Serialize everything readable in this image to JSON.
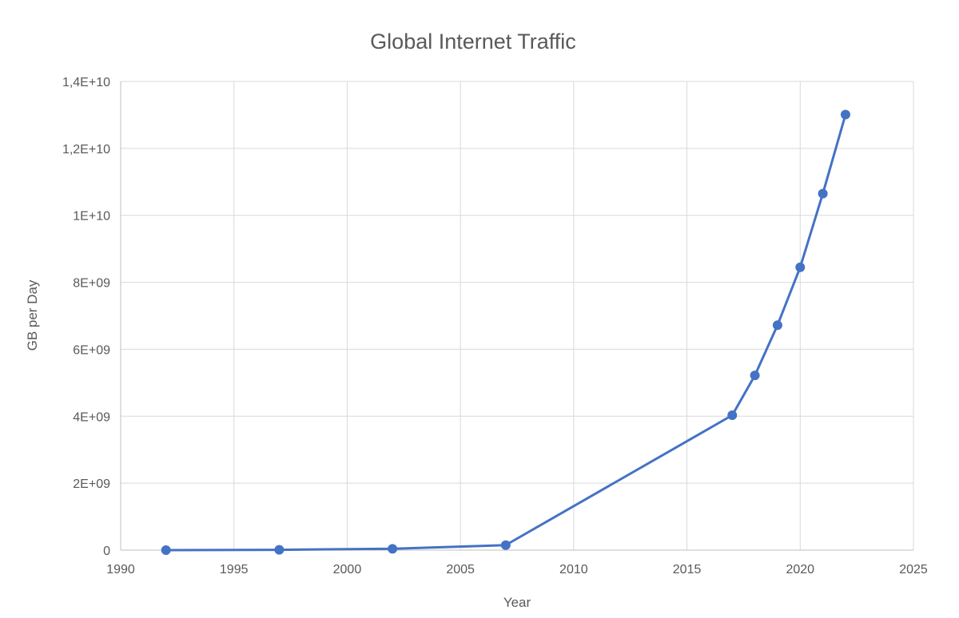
{
  "chart_data": {
    "type": "line",
    "title": "Global Internet Traffic",
    "xlabel": "Year",
    "ylabel": "GB per Day",
    "xlim": [
      1990,
      2025
    ],
    "ylim": [
      0,
      14000000000
    ],
    "x_ticks": [
      1990,
      1995,
      2000,
      2005,
      2010,
      2015,
      2020,
      2025
    ],
    "y_ticks": [
      {
        "value": 0,
        "label": "0"
      },
      {
        "value": 2000000000,
        "label": "2E+09"
      },
      {
        "value": 4000000000,
        "label": "4E+09"
      },
      {
        "value": 6000000000,
        "label": "6E+09"
      },
      {
        "value": 8000000000,
        "label": "8E+09"
      },
      {
        "value": 10000000000,
        "label": "1E+10"
      },
      {
        "value": 12000000000,
        "label": "1,2E+10"
      },
      {
        "value": 14000000000,
        "label": "1,4E+10"
      }
    ],
    "grid": true,
    "legend": "none",
    "color": "#4472c4",
    "x": [
      1992,
      1997,
      2002,
      2007,
      2017,
      2018,
      2019,
      2020,
      2021,
      2022
    ],
    "values": [
      100000,
      10000000,
      40000000,
      150000000,
      4030000000,
      5220000000,
      6720000000,
      8450000000,
      10650000000,
      13010000000
    ]
  }
}
